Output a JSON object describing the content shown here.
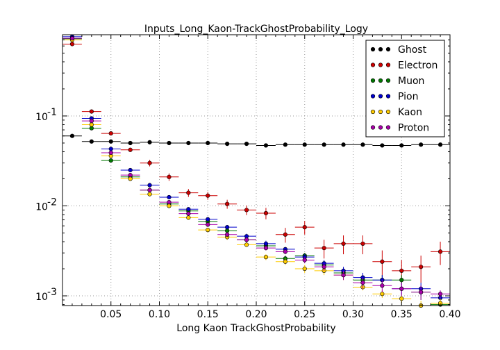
{
  "chart_data": {
    "type": "scatter",
    "title": "Inputs_Long_Kaon-TrackGhostProbability_Logy",
    "xlabel": "Long Kaon TrackGhostProbability",
    "ylabel": "",
    "xlim": [
      0.0,
      0.4
    ],
    "ylim": [
      0.00078,
      0.8
    ],
    "yscale": "log",
    "grid": true,
    "legend_position": "top-right",
    "bin_width": 0.02,
    "x": [
      0.01,
      0.03,
      0.05,
      0.07,
      0.09,
      0.11,
      0.13,
      0.15,
      0.17,
      0.19,
      0.21,
      0.23,
      0.25,
      0.27,
      0.29,
      0.31,
      0.33,
      0.35,
      0.37,
      0.39
    ],
    "xticks": [
      0.05,
      0.1,
      0.15,
      0.2,
      0.25,
      0.3,
      0.35,
      0.4
    ],
    "xtick_labels": [
      "0.05",
      "0.10",
      "0.15",
      "0.20",
      "0.25",
      "0.30",
      "0.35",
      "0.40"
    ],
    "ytick_labels": [
      "10",
      "10",
      "10"
    ],
    "ytick_exponents": [
      "-1",
      "-2",
      "-3"
    ],
    "ytick_values": [
      0.1,
      0.01,
      0.001
    ],
    "series": [
      {
        "name": "Ghost",
        "color": "#000000",
        "values": [
          0.06,
          0.052,
          0.052,
          0.05,
          0.051,
          0.05,
          0.05,
          0.05,
          0.049,
          0.049,
          0.047,
          0.048,
          0.048,
          0.048,
          0.048,
          0.048,
          0.047,
          0.047,
          0.048,
          0.048
        ],
        "errors": [
          0.0015,
          0.001,
          0.001,
          0.001,
          0.001,
          0.001,
          0.001,
          0.001,
          0.001,
          0.001,
          0.001,
          0.001,
          0.001,
          0.001,
          0.001,
          0.001,
          0.001,
          0.001,
          0.001,
          0.001
        ]
      },
      {
        "name": "Electron",
        "color": "#cc0000",
        "values": [
          0.63,
          0.112,
          0.064,
          0.042,
          0.03,
          0.021,
          0.014,
          0.013,
          0.0105,
          0.009,
          0.0083,
          0.0048,
          0.0058,
          0.0034,
          0.0038,
          0.0038,
          0.0024,
          0.0019,
          0.0021,
          0.0031
        ],
        "errors": [
          0.03,
          0.005,
          0.003,
          0.002,
          0.0025,
          0.002,
          0.0014,
          0.0013,
          0.0012,
          0.0011,
          0.0012,
          0.0009,
          0.001,
          0.0008,
          0.0009,
          0.0009,
          0.0008,
          0.0006,
          0.0007,
          0.0009
        ]
      },
      {
        "name": "Muon",
        "color": "#007700",
        "values": [
          0.72,
          0.073,
          0.032,
          0.021,
          0.015,
          0.0105,
          0.0088,
          0.0067,
          0.0053,
          0.0042,
          0.0036,
          0.0026,
          0.0028,
          0.0022,
          0.0018,
          0.0015,
          0.0015,
          0.0015,
          0.0011,
          0.0008
        ],
        "errors": [
          0.02,
          0.003,
          0.0012,
          0.0008,
          0.0006,
          0.0004,
          0.0004,
          0.0003,
          0.0003,
          0.0003,
          0.0003,
          0.0002,
          0.0002,
          0.0002,
          0.0002,
          0.0002,
          0.0002,
          0.0002,
          0.0002,
          0.0002
        ]
      },
      {
        "name": "Pion",
        "color": "#0000cc",
        "values": [
          0.76,
          0.094,
          0.043,
          0.025,
          0.017,
          0.0125,
          0.0092,
          0.0071,
          0.0058,
          0.0046,
          0.0038,
          0.0033,
          0.0027,
          0.0023,
          0.0019,
          0.0016,
          0.0015,
          0.0012,
          0.0012,
          0.00095
        ],
        "errors": [
          0.02,
          0.003,
          0.0015,
          0.0008,
          0.0006,
          0.0004,
          0.0004,
          0.0003,
          0.0003,
          0.0003,
          0.0003,
          0.0002,
          0.0002,
          0.0002,
          0.0002,
          0.0002,
          0.0002,
          0.0002,
          0.0002,
          0.0001
        ]
      },
      {
        "name": "Kaon",
        "color": "#ffcc00",
        "values": [
          0.7,
          0.08,
          0.036,
          0.02,
          0.0135,
          0.01,
          0.0074,
          0.0054,
          0.0045,
          0.0037,
          0.0027,
          0.0024,
          0.002,
          0.0019,
          0.0017,
          0.00125,
          0.00105,
          0.00093,
          0.00078,
          0.00083
        ],
        "errors": [
          0.02,
          0.003,
          0.0012,
          0.0008,
          0.0006,
          0.0004,
          0.0003,
          0.0003,
          0.0003,
          0.0002,
          0.0002,
          0.0002,
          0.0002,
          0.0002,
          0.0002,
          0.0001,
          0.0001,
          0.0001,
          0.0001,
          0.0001
        ]
      },
      {
        "name": "Proton",
        "color": "#aa00aa",
        "values": [
          0.73,
          0.088,
          0.039,
          0.022,
          0.015,
          0.011,
          0.0082,
          0.0062,
          0.0048,
          0.0042,
          0.0034,
          0.0031,
          0.0025,
          0.0021,
          0.0017,
          0.0014,
          0.0013,
          0.0012,
          0.0011,
          0.00105
        ],
        "errors": [
          0.02,
          0.003,
          0.0013,
          0.0008,
          0.0006,
          0.0004,
          0.0004,
          0.0003,
          0.0003,
          0.0003,
          0.0002,
          0.0002,
          0.0002,
          0.0002,
          0.0002,
          0.0002,
          0.0002,
          0.0002,
          0.0002,
          0.0001
        ]
      }
    ]
  }
}
